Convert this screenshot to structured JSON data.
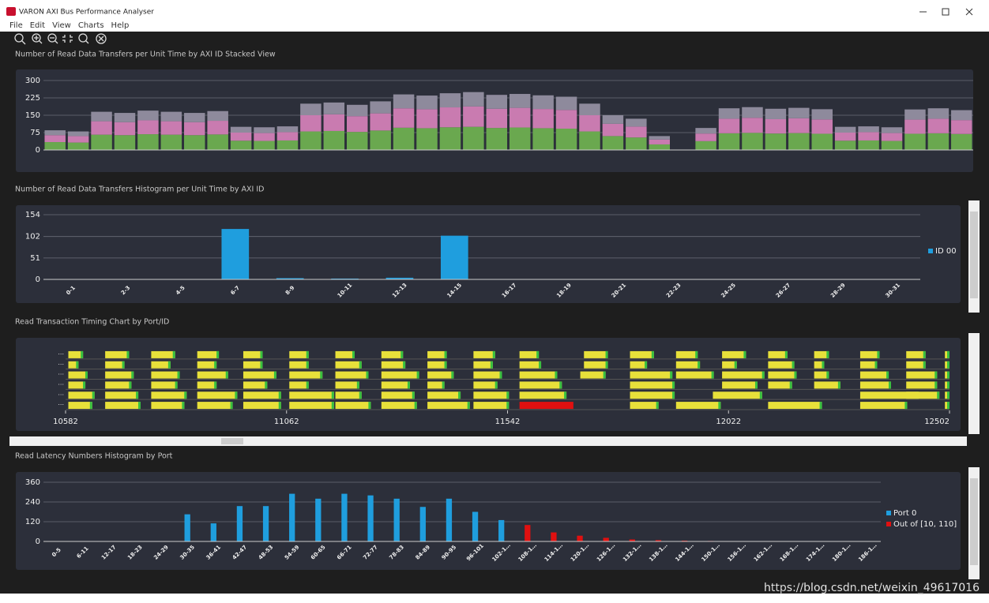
{
  "window": {
    "title": "VARON AXI Bus Performance Analyser",
    "menu": [
      "File",
      "Edit",
      "View",
      "Charts",
      "Help"
    ],
    "watermark": "https://blog.csdn.net/weixin_49617016"
  },
  "chart_data": [
    {
      "type": "stacked_bar",
      "title": "Number of Read Data Transfers per Unit Time by AXI ID Stacked View",
      "ylim": [
        0,
        300
      ],
      "yticks": [
        0,
        75,
        150,
        225,
        300
      ],
      "grid": true,
      "series": [
        {
          "color": "#6aa84f",
          "values": [
            34,
            32,
            66,
            64,
            68,
            66,
            64,
            67,
            40,
            39,
            41,
            80,
            82,
            78,
            84,
            96,
            94,
            98,
            100,
            95,
            97,
            94,
            92,
            80,
            60,
            54,
            24,
            0,
            38,
            72,
            74,
            71,
            73,
            70,
            40,
            41,
            39,
            70,
            72,
            69
          ]
        },
        {
          "color": "#c97bb0",
          "values": [
            30,
            28,
            58,
            56,
            60,
            58,
            56,
            59,
            35,
            34,
            36,
            70,
            72,
            68,
            74,
            84,
            82,
            86,
            88,
            83,
            85,
            83,
            81,
            70,
            53,
            47,
            21,
            0,
            33,
            63,
            65,
            62,
            64,
            62,
            35,
            36,
            34,
            61,
            63,
            60
          ]
        },
        {
          "color": "#8e8a9c",
          "values": [
            21,
            20,
            41,
            40,
            42,
            41,
            40,
            42,
            25,
            25,
            25,
            50,
            51,
            49,
            52,
            60,
            59,
            61,
            62,
            60,
            60,
            59,
            57,
            50,
            37,
            34,
            15,
            0,
            24,
            45,
            46,
            45,
            45,
            44,
            25,
            25,
            25,
            44,
            45,
            43
          ]
        }
      ]
    },
    {
      "type": "bar",
      "title": "Number of Read Data Transfers Histogram per Unit Time by AXI ID",
      "categories": [
        "0-1",
        "2-3",
        "4-5",
        "6-7",
        "8-9",
        "10-11",
        "12-13",
        "14-15",
        "16-17",
        "18-19",
        "20-21",
        "22-23",
        "24-25",
        "26-27",
        "28-29",
        "30-31"
      ],
      "ylim": [
        0,
        154
      ],
      "yticks": [
        0,
        51,
        102,
        154
      ],
      "grid": true,
      "legend": "right",
      "series": [
        {
          "name": "ID 00",
          "color": "#1f9ede",
          "values": [
            0,
            0,
            0,
            120,
            3,
            2,
            4,
            104,
            0,
            0,
            0,
            0,
            0,
            0,
            0,
            0
          ]
        }
      ]
    },
    {
      "type": "timeline",
      "title": "Read Transaction Timing Chart by Port/ID",
      "xlim": [
        10582,
        12502
      ],
      "xticks": [
        10582,
        11062,
        11542,
        12022,
        12502
      ],
      "color": "#e8e03a",
      "error_color": "#e01010",
      "rows": [
        {
          "label": "...",
          "starts": [
            10588,
            10668,
            10768,
            10868,
            10968,
            11068,
            11168,
            11268,
            11368,
            11468,
            11568,
            11708,
            11808,
            11908,
            12008,
            12108,
            12208,
            12308,
            12408,
            12492
          ],
          "ends": [
            10620,
            10720,
            10820,
            10915,
            11010,
            11110,
            11210,
            11315,
            11410,
            11515,
            11610,
            11760,
            11860,
            11955,
            12060,
            12150,
            12240,
            12350,
            12450,
            12502
          ]
        },
        {
          "label": "...",
          "starts": [
            10588,
            10668,
            10768,
            10868,
            10968,
            11068,
            11168,
            11268,
            11368,
            11468,
            11568,
            11708,
            11808,
            11908,
            12008,
            12108,
            12208,
            12308,
            12408,
            12492
          ],
          "ends": [
            10610,
            10710,
            10810,
            10910,
            11010,
            11110,
            11225,
            11320,
            11410,
            11510,
            11615,
            11760,
            11845,
            11960,
            12040,
            12165,
            12230,
            12345,
            12450,
            12502
          ]
        },
        {
          "label": "...",
          "starts": [
            10588,
            10668,
            10768,
            10868,
            10968,
            11068,
            11168,
            11268,
            11368,
            11468,
            11568,
            11700,
            11808,
            11908,
            12008,
            12108,
            12208,
            12308,
            12408,
            12492
          ],
          "ends": [
            10630,
            10730,
            10830,
            10935,
            11040,
            11140,
            11240,
            11350,
            11425,
            11530,
            11650,
            11755,
            11900,
            11990,
            12100,
            12170,
            12240,
            12370,
            12475,
            12502
          ]
        },
        {
          "label": "...",
          "starts": [
            10588,
            10668,
            10768,
            10868,
            10968,
            11068,
            11168,
            11268,
            11368,
            11468,
            11568,
            11808,
            12008,
            12108,
            12208,
            12308,
            12408,
            12492
          ],
          "ends": [
            10625,
            10725,
            10825,
            10910,
            11020,
            11110,
            11220,
            11330,
            11405,
            11520,
            11660,
            11905,
            12085,
            12160,
            12265,
            12375,
            12475,
            12502
          ]
        },
        {
          "label": "...",
          "starts": [
            10588,
            10668,
            10768,
            10868,
            10968,
            11068,
            11168,
            11268,
            11368,
            11468,
            11568,
            11808,
            11988,
            12308,
            12408,
            12492
          ],
          "ends": [
            10645,
            10740,
            10845,
            10955,
            11050,
            11165,
            11225,
            11340,
            11440,
            11545,
            11670,
            11905,
            12095,
            12435,
            12480,
            12502
          ]
        },
        {
          "label": "...",
          "starts": [
            10588,
            10668,
            10768,
            10868,
            10968,
            11068,
            11168,
            11268,
            11368,
            11468,
            11808,
            11908,
            12108,
            12308,
            12492
          ],
          "ends": [
            10640,
            10745,
            10840,
            10945,
            11050,
            11165,
            11245,
            11345,
            11460,
            11545,
            11870,
            12005,
            12225,
            12410,
            12502
          ]
        }
      ],
      "errors": [
        {
          "row": 5,
          "start": 11568,
          "end": 11685
        }
      ]
    },
    {
      "type": "bar",
      "title": "Read Latency Numbers Histogram by Port",
      "categories": [
        "0-5",
        "6-11",
        "12-17",
        "18-23",
        "24-29",
        "30-35",
        "36-41",
        "42-47",
        "48-53",
        "54-59",
        "60-65",
        "66-71",
        "72-77",
        "78-83",
        "84-89",
        "90-95",
        "96-101",
        "102-1…",
        "108-1…",
        "114-1…",
        "120-1…",
        "126-1…",
        "132-1…",
        "138-1…",
        "144-1…",
        "150-1…",
        "156-1…",
        "162-1…",
        "168-1…",
        "174-1…",
        "180-1…",
        "186-1…"
      ],
      "ylim": [
        0,
        360
      ],
      "yticks": [
        0,
        120,
        240,
        360
      ],
      "grid": true,
      "legend": "right",
      "series": [
        {
          "name": "Port 0",
          "color": "#1f9ede",
          "values": [
            0,
            0,
            0,
            0,
            0,
            165,
            110,
            215,
            215,
            290,
            260,
            290,
            280,
            260,
            210,
            260,
            180,
            130,
            null,
            null,
            null,
            null,
            null,
            null,
            null,
            null,
            null,
            null,
            null,
            null,
            null,
            null
          ]
        },
        {
          "name": "Out of [10, 110]",
          "color": "#e01010",
          "values": [
            null,
            null,
            null,
            null,
            null,
            null,
            null,
            null,
            null,
            null,
            null,
            null,
            null,
            null,
            null,
            null,
            null,
            null,
            100,
            55,
            35,
            22,
            12,
            8,
            5,
            3,
            2,
            1,
            1,
            1,
            0,
            0
          ]
        }
      ]
    }
  ]
}
